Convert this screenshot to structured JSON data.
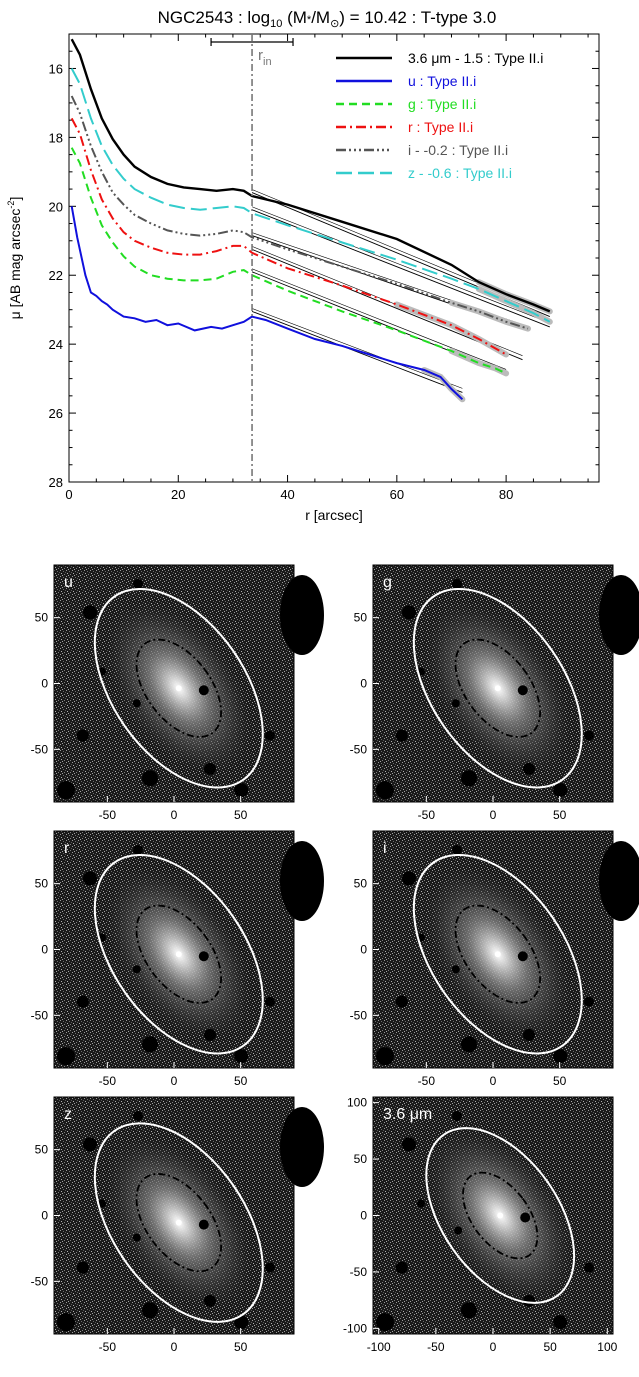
{
  "profile": {
    "title_pre": "NGC2543 : log",
    "title_sub": "10",
    "title_mid": " (M",
    "title_star": "*",
    "title_mid2": "/M",
    "title_sun": "⊙",
    "title_post": ") = 10.42 : T-type 3.0",
    "xlabel": "r [arcsec]",
    "ylabel": "μ [AB mag arcsec",
    "ylabel_sup": "-2",
    "ylabel_end": "]",
    "rin_label": "r",
    "rin_sub": "in",
    "rin_value": 33.5,
    "rin_error": [
      26.0,
      41.0
    ],
    "xlim": [
      0,
      97
    ],
    "ylim": [
      28,
      15
    ],
    "xticks": [
      0,
      20,
      40,
      60,
      80
    ],
    "yticks": [
      16,
      18,
      20,
      22,
      24,
      26,
      28
    ],
    "legend": [
      {
        "key": "ir",
        "label": "3.6 μm - 1.5 : Type II.i",
        "color": "#000000"
      },
      {
        "key": "u",
        "label": "u : Type II.i",
        "color": "#1010dd"
      },
      {
        "key": "g",
        "label": "g : Type II.i",
        "color": "#22dd22"
      },
      {
        "key": "r",
        "label": "r : Type II.i",
        "color": "#ee1111"
      },
      {
        "key": "i",
        "label": "i - -0.2 : Type II.i",
        "color": "#555555"
      },
      {
        "key": "z",
        "label": "z - -0.6 : Type II.i",
        "color": "#33cccc"
      }
    ]
  },
  "chart_data": {
    "type": "line",
    "title": "NGC2543 : log10 (M*/M⊙) = 10.42 : T-type 3.0",
    "xlabel": "r [arcsec]",
    "ylabel": "μ [AB mag arcsec-2]",
    "xlim": [
      0,
      97
    ],
    "ylim": [
      28,
      15
    ],
    "series": [
      {
        "name": "3.6 μm - 1.5 : Type II.i",
        "color": "#000000",
        "dash": "",
        "x": [
          0.5,
          2,
          4,
          6,
          8,
          10,
          12,
          15,
          18,
          21,
          24,
          27,
          30,
          32,
          33.5,
          40,
          50,
          60,
          70,
          75,
          80,
          85,
          88
        ],
        "y": [
          15.15,
          15.6,
          16.6,
          17.45,
          18.05,
          18.5,
          18.85,
          19.15,
          19.35,
          19.45,
          19.5,
          19.55,
          19.5,
          19.55,
          19.7,
          19.95,
          20.45,
          20.95,
          21.7,
          22.2,
          22.55,
          22.85,
          23.05
        ]
      },
      {
        "name": "u : Type II.i",
        "color": "#1010dd",
        "dash": "",
        "x": [
          0.5,
          1.5,
          3,
          4,
          5,
          6,
          7,
          8,
          10,
          12,
          14,
          16,
          18,
          20,
          23,
          26,
          28,
          30,
          32,
          33.5,
          36,
          40,
          45,
          50,
          55,
          60,
          65,
          68,
          70,
          72
        ],
        "y": [
          20.0,
          20.9,
          22.0,
          22.5,
          22.6,
          22.75,
          22.85,
          23.0,
          23.2,
          23.25,
          23.35,
          23.3,
          23.45,
          23.4,
          23.6,
          23.5,
          23.55,
          23.45,
          23.35,
          23.2,
          23.3,
          23.55,
          23.85,
          24.05,
          24.3,
          24.55,
          24.75,
          24.95,
          25.3,
          25.6
        ]
      },
      {
        "name": "g : Type II.i",
        "color": "#22dd22",
        "dash": "8,5",
        "x": [
          0.5,
          2,
          4,
          6,
          8,
          10,
          12,
          15,
          18,
          21,
          24,
          27,
          30,
          32,
          33.5,
          40,
          50,
          60,
          70,
          75,
          78,
          80
        ],
        "y": [
          18.3,
          18.75,
          19.75,
          20.55,
          21.05,
          21.45,
          21.75,
          22.0,
          22.1,
          22.15,
          22.15,
          22.1,
          21.9,
          21.85,
          22.0,
          22.45,
          23.05,
          23.6,
          24.2,
          24.55,
          24.7,
          24.85
        ]
      },
      {
        "name": "r : Type II.i",
        "color": "#ee1111",
        "dash": "10,4,2,4",
        "x": [
          0.5,
          2,
          4,
          6,
          8,
          10,
          12,
          15,
          18,
          21,
          24,
          27,
          30,
          32,
          33.5,
          40,
          50,
          60,
          70,
          75,
          80
        ],
        "y": [
          17.45,
          17.9,
          18.95,
          19.8,
          20.35,
          20.75,
          21.0,
          21.2,
          21.35,
          21.4,
          21.4,
          21.3,
          21.15,
          21.15,
          21.35,
          21.8,
          22.3,
          22.85,
          23.45,
          23.85,
          24.3
        ]
      },
      {
        "name": "i - -0.2 : Type II.i",
        "color": "#555555",
        "dash": "10,3,2,3,2,3,2,3",
        "x": [
          0.5,
          2,
          4,
          6,
          8,
          10,
          12,
          15,
          18,
          21,
          24,
          27,
          30,
          32,
          33.5,
          40,
          50,
          60,
          70,
          75,
          80,
          84
        ],
        "y": [
          16.8,
          17.3,
          18.25,
          19.0,
          19.6,
          19.95,
          20.25,
          20.5,
          20.7,
          20.8,
          20.85,
          20.8,
          20.7,
          20.75,
          20.9,
          21.25,
          21.75,
          22.25,
          22.8,
          23.05,
          23.35,
          23.55
        ]
      },
      {
        "name": "z - -0.6 : Type II.i",
        "color": "#33cccc",
        "dash": "16,6",
        "x": [
          0.5,
          2,
          4,
          6,
          8,
          10,
          12,
          15,
          18,
          21,
          24,
          27,
          30,
          32,
          33.5,
          40,
          50,
          60,
          70,
          75,
          80,
          85,
          88
        ],
        "y": [
          16.0,
          16.45,
          17.45,
          18.25,
          18.8,
          19.2,
          19.5,
          19.75,
          19.95,
          20.05,
          20.1,
          20.05,
          20.0,
          20.05,
          20.2,
          20.55,
          21.05,
          21.55,
          22.1,
          22.4,
          22.75,
          23.1,
          23.35
        ]
      }
    ],
    "fits": [
      {
        "name": "3.6 μm",
        "x": [
          33.5,
          88
        ],
        "y": [
          19.6,
          23.2
        ]
      },
      {
        "name": "z",
        "x": [
          33.5,
          88
        ],
        "y": [
          20.1,
          23.5
        ]
      },
      {
        "name": "i",
        "x": [
          33.5,
          84
        ],
        "y": [
          20.85,
          23.6
        ]
      },
      {
        "name": "r",
        "x": [
          33.5,
          83
        ],
        "y": [
          21.25,
          24.45
        ]
      },
      {
        "name": "g",
        "x": [
          33.5,
          80
        ],
        "y": [
          21.9,
          24.85
        ]
      },
      {
        "name": "u",
        "x": [
          33.5,
          72
        ],
        "y": [
          23.05,
          25.4
        ]
      }
    ]
  },
  "panels": [
    {
      "label": "u",
      "xticks": [
        "-50",
        "0",
        "50"
      ],
      "yticks": [
        "50",
        "0",
        "-50"
      ]
    },
    {
      "label": "g",
      "xticks": [
        "-50",
        "0",
        "50"
      ],
      "yticks": [
        "50",
        "0",
        "-50"
      ]
    },
    {
      "label": "r",
      "xticks": [
        "-50",
        "0",
        "50"
      ],
      "yticks": [
        "50",
        "0",
        "-50"
      ]
    },
    {
      "label": "i",
      "xticks": [
        "-50",
        "0",
        "50"
      ],
      "yticks": [
        "50",
        "0",
        "-50"
      ]
    },
    {
      "label": "z",
      "xticks": [
        "-50",
        "0",
        "50"
      ],
      "yticks": [
        "50",
        "0",
        "-50"
      ]
    },
    {
      "label": "3.6 μm",
      "xticks": [
        "-100",
        "-50",
        "0",
        "50",
        "100"
      ],
      "yticks": [
        "100",
        "50",
        "0",
        "-50",
        "-100"
      ]
    }
  ],
  "colors": {
    "image_bg": "#111111",
    "ellipse_outer": "#ffffff",
    "ellipse_inner": "#000000"
  }
}
